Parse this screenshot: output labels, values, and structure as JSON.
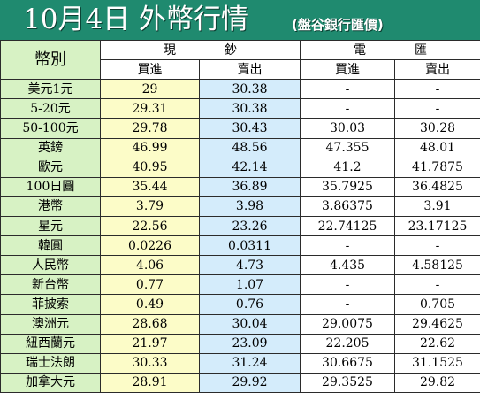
{
  "title": {
    "main": "10月4日 外幣行情",
    "source": "(盤谷銀行匯價)"
  },
  "header": {
    "currency_label": "幣別",
    "cash_label": "現鈔",
    "wire_label": "電匯",
    "buy_label": "買進",
    "sell_label": "賣出"
  },
  "rows": [
    {
      "currency": "美元1元",
      "cash_buy": "29",
      "cash_sell": "30.38",
      "wire_buy": "-",
      "wire_sell": "-"
    },
    {
      "currency": "5-20元",
      "cash_buy": "29.31",
      "cash_sell": "30.38",
      "wire_buy": "-",
      "wire_sell": "-"
    },
    {
      "currency": "50-100元",
      "cash_buy": "29.78",
      "cash_sell": "30.43",
      "wire_buy": "30.03",
      "wire_sell": "30.28"
    },
    {
      "currency": "英鎊",
      "cash_buy": "46.99",
      "cash_sell": "48.56",
      "wire_buy": "47.355",
      "wire_sell": "48.01"
    },
    {
      "currency": "歐元",
      "cash_buy": "40.95",
      "cash_sell": "42.14",
      "wire_buy": "41.2",
      "wire_sell": "41.7875"
    },
    {
      "currency": "100日圓",
      "cash_buy": "35.44",
      "cash_sell": "36.89",
      "wire_buy": "35.7925",
      "wire_sell": "36.4825"
    },
    {
      "currency": "港幣",
      "cash_buy": "3.79",
      "cash_sell": "3.98",
      "wire_buy": "3.86375",
      "wire_sell": "3.91"
    },
    {
      "currency": "星元",
      "cash_buy": "22.56",
      "cash_sell": "23.26",
      "wire_buy": "22.74125",
      "wire_sell": "23.17125"
    },
    {
      "currency": "韓圓",
      "cash_buy": "0.0226",
      "cash_sell": "0.0311",
      "wire_buy": "-",
      "wire_sell": "-"
    },
    {
      "currency": "人民幣",
      "cash_buy": "4.06",
      "cash_sell": "4.73",
      "wire_buy": "4.435",
      "wire_sell": "4.58125"
    },
    {
      "currency": "新台幣",
      "cash_buy": "0.77",
      "cash_sell": "1.07",
      "wire_buy": "-",
      "wire_sell": "-"
    },
    {
      "currency": "菲披索",
      "cash_buy": "0.49",
      "cash_sell": "0.76",
      "wire_buy": "-",
      "wire_sell": "0.705"
    },
    {
      "currency": "澳洲元",
      "cash_buy": "28.68",
      "cash_sell": "30.04",
      "wire_buy": "29.0075",
      "wire_sell": "29.4625"
    },
    {
      "currency": "紐西蘭元",
      "cash_buy": "21.97",
      "cash_sell": "23.09",
      "wire_buy": "22.205",
      "wire_sell": "22.62"
    },
    {
      "currency": "瑞士法朗",
      "cash_buy": "30.33",
      "cash_sell": "31.24",
      "wire_buy": "30.6675",
      "wire_sell": "31.1525"
    },
    {
      "currency": "加拿大元",
      "cash_buy": "28.91",
      "cash_sell": "29.92",
      "wire_buy": "29.3525",
      "wire_sell": "29.82"
    }
  ],
  "colors": {
    "title_bar": "#1f8a6f",
    "header_green": "#d7f2c4",
    "cash_buy_yellow": "#fcfcc8",
    "cash_sell_blue": "#d4ecfb"
  }
}
